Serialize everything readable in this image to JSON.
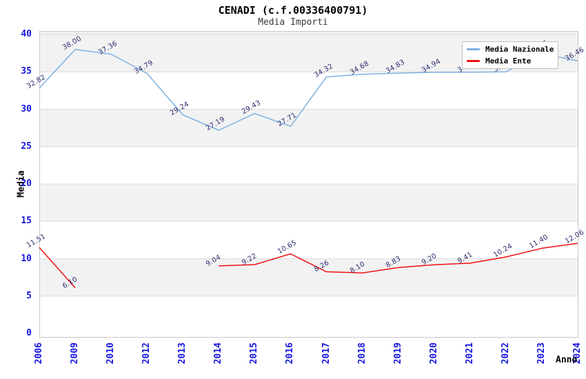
{
  "title": "CENADI (c.f.00336400791)",
  "subtitle": "Media Importi",
  "axes": {
    "y_title": "Media",
    "x_title": "Anno",
    "y_ticks": [
      "0",
      "5",
      "10",
      "15",
      "20",
      "25",
      "30",
      "35",
      "40"
    ]
  },
  "legend": {
    "position": "top-right",
    "items": [
      {
        "label": "Media Nazionale",
        "color": "#7db0e0"
      },
      {
        "label": "Media Ente",
        "color": "#f01010"
      }
    ]
  },
  "colors": {
    "band": "#f2f2f2",
    "grid": "#dcdcdc",
    "border": "#c8c8c8",
    "axis_tick_text": "#1414dd",
    "data_label_text": "#2e2e70"
  },
  "chart_data": {
    "type": "line",
    "title": "CENADI (c.f.00336400791)",
    "subtitle": "Media Importi",
    "xlabel": "Anno",
    "ylabel": "Media",
    "ylim": [
      0,
      40
    ],
    "ytick_step": 5,
    "grid": "horizontal-bands",
    "legend_position": "top-right",
    "categories": [
      "2006",
      "2009",
      "2010",
      "2012",
      "2013",
      "2014",
      "2015",
      "2016",
      "2017",
      "2018",
      "2019",
      "2020",
      "2021",
      "2022",
      "2023",
      "2024"
    ],
    "series": [
      {
        "name": "Media Nazionale",
        "color": "#7db0e0",
        "values": [
          32.82,
          38.0,
          37.36,
          34.79,
          29.24,
          27.19,
          29.43,
          27.71,
          34.32,
          34.68,
          34.83,
          34.94,
          34.95,
          35.0,
          37.45,
          36.46
        ],
        "labels": [
          "32.82",
          "38.00",
          "37.36",
          "34.79",
          "29.24",
          "27.19",
          "29.43",
          "27.71",
          "34.32",
          "34.68",
          "34.83",
          "34.94",
          "34.95",
          "35.00",
          "37.45",
          "36.46"
        ],
        "labels_hidden_by_legend": [
          "2021",
          "2022",
          "2023"
        ]
      },
      {
        "name": "Media Ente",
        "color": "#f01010",
        "values": [
          11.51,
          6.1,
          null,
          null,
          null,
          9.04,
          9.22,
          10.65,
          8.26,
          8.1,
          8.83,
          9.2,
          9.41,
          10.24,
          11.4,
          12.06
        ],
        "labels": [
          "11.51",
          "6.10",
          "",
          "",
          "",
          "9.04",
          "9.22",
          "10.65",
          "8.26",
          "8.10",
          "8.83",
          "9.20",
          "9.41",
          "10.24",
          "11.40",
          "12.06"
        ]
      }
    ]
  }
}
